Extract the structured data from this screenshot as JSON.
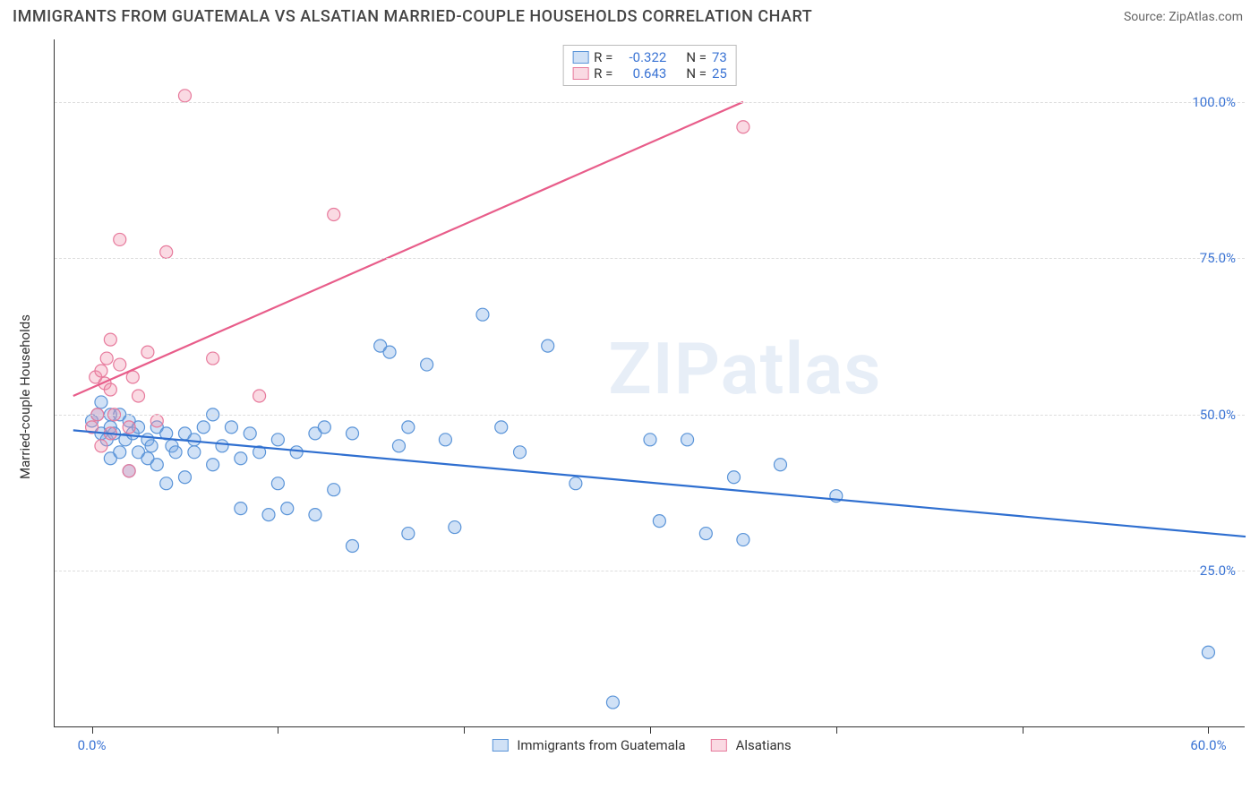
{
  "title": "IMMIGRANTS FROM GUATEMALA VS ALSATIAN MARRIED-COUPLE HOUSEHOLDS CORRELATION CHART",
  "source": "Source: ZipAtlas.com",
  "watermark": "ZIPatlas",
  "chart": {
    "type": "scatter",
    "ylabel": "Married-couple Households",
    "xlim": [
      -2,
      62
    ],
    "ylim": [
      0,
      110
    ],
    "xticks": [
      0,
      10,
      20,
      30,
      40,
      50,
      60
    ],
    "xtick_labels": {
      "0": "0.0%",
      "60": "60.0%"
    },
    "yticks": [
      25,
      50,
      75,
      100
    ],
    "ytick_labels": [
      "25.0%",
      "50.0%",
      "75.0%",
      "100.0%"
    ],
    "grid_color": "#dddddd",
    "axis_color": "#333333",
    "background_color": "#ffffff",
    "tick_label_color": "#3b74d4",
    "marker_radius": 7,
    "marker_stroke_width": 1.2,
    "line_width": 2.2,
    "series": [
      {
        "name": "Immigrants from Guatemala",
        "fill": "rgba(120,170,230,0.35)",
        "stroke": "#5a94d8",
        "line_color": "#2f6fd0",
        "R": "-0.322",
        "N": "73",
        "trend": {
          "x1": -1,
          "y1": 47.5,
          "x2": 62,
          "y2": 30.5
        },
        "points": [
          [
            0,
            49
          ],
          [
            0.3,
            50
          ],
          [
            0.5,
            47
          ],
          [
            0.5,
            52
          ],
          [
            0.8,
            46
          ],
          [
            1,
            50
          ],
          [
            1,
            43
          ],
          [
            1,
            48
          ],
          [
            1.2,
            47
          ],
          [
            1.5,
            44
          ],
          [
            1.5,
            50
          ],
          [
            1.8,
            46
          ],
          [
            2,
            49
          ],
          [
            2,
            41
          ],
          [
            2.2,
            47
          ],
          [
            2.5,
            44
          ],
          [
            2.5,
            48
          ],
          [
            3,
            43
          ],
          [
            3,
            46
          ],
          [
            3.2,
            45
          ],
          [
            3.5,
            42
          ],
          [
            3.5,
            48
          ],
          [
            4,
            47
          ],
          [
            4,
            39
          ],
          [
            4.3,
            45
          ],
          [
            4.5,
            44
          ],
          [
            5,
            47
          ],
          [
            5,
            40
          ],
          [
            5.5,
            46
          ],
          [
            5.5,
            44
          ],
          [
            6,
            48
          ],
          [
            6.5,
            42
          ],
          [
            6.5,
            50
          ],
          [
            7,
            45
          ],
          [
            7.5,
            48
          ],
          [
            8,
            43
          ],
          [
            8,
            35
          ],
          [
            8.5,
            47
          ],
          [
            9,
            44
          ],
          [
            9.5,
            34
          ],
          [
            10,
            46
          ],
          [
            10,
            39
          ],
          [
            10.5,
            35
          ],
          [
            11,
            44
          ],
          [
            12,
            47
          ],
          [
            12,
            34
          ],
          [
            12.5,
            48
          ],
          [
            13,
            38
          ],
          [
            14,
            29
          ],
          [
            14,
            47
          ],
          [
            15.5,
            61
          ],
          [
            16,
            60
          ],
          [
            16.5,
            45
          ],
          [
            17,
            48
          ],
          [
            17,
            31
          ],
          [
            18,
            58
          ],
          [
            19,
            46
          ],
          [
            19.5,
            32
          ],
          [
            21,
            66
          ],
          [
            22,
            48
          ],
          [
            23,
            44
          ],
          [
            24.5,
            61
          ],
          [
            26,
            39
          ],
          [
            28,
            4
          ],
          [
            30,
            46
          ],
          [
            30.5,
            33
          ],
          [
            32,
            46
          ],
          [
            33,
            31
          ],
          [
            34.5,
            40
          ],
          [
            35,
            30
          ],
          [
            37,
            42
          ],
          [
            40,
            37
          ],
          [
            60,
            12
          ]
        ]
      },
      {
        "name": "Alsatians",
        "fill": "rgba(240,150,175,0.35)",
        "stroke": "#e77a9c",
        "line_color": "#e85d8a",
        "R": "0.643",
        "N": "25",
        "trend": {
          "x1": -1,
          "y1": 53,
          "x2": 35,
          "y2": 100
        },
        "points": [
          [
            0,
            48
          ],
          [
            0.2,
            56
          ],
          [
            0.3,
            50
          ],
          [
            0.5,
            57
          ],
          [
            0.5,
            45
          ],
          [
            0.7,
            55
          ],
          [
            0.8,
            59
          ],
          [
            1,
            47
          ],
          [
            1,
            54
          ],
          [
            1,
            62
          ],
          [
            1.2,
            50
          ],
          [
            1.5,
            58
          ],
          [
            1.5,
            78
          ],
          [
            2,
            48
          ],
          [
            2,
            41
          ],
          [
            2.2,
            56
          ],
          [
            2.5,
            53
          ],
          [
            3,
            60
          ],
          [
            3.5,
            49
          ],
          [
            4,
            76
          ],
          [
            5,
            101
          ],
          [
            6.5,
            59
          ],
          [
            9,
            53
          ],
          [
            13,
            82
          ],
          [
            35,
            96
          ]
        ]
      }
    ]
  },
  "legend_top": {
    "rows": [
      {
        "swatch_fill": "rgba(120,170,230,0.35)",
        "swatch_stroke": "#5a94d8",
        "R_label": "R =",
        "R_val": "-0.322",
        "N_label": "N =",
        "N_val": "73"
      },
      {
        "swatch_fill": "rgba(240,150,175,0.35)",
        "swatch_stroke": "#e77a9c",
        "R_label": "R =",
        "R_val": " 0.643",
        "N_label": "N =",
        "N_val": "25"
      }
    ],
    "label_color": "#333333",
    "value_color": "#3b74d4"
  },
  "legend_bottom": {
    "items": [
      {
        "swatch_fill": "rgba(120,170,230,0.35)",
        "swatch_stroke": "#5a94d8",
        "label": "Immigrants from Guatemala"
      },
      {
        "swatch_fill": "rgba(240,150,175,0.35)",
        "swatch_stroke": "#e77a9c",
        "label": "Alsatians"
      }
    ]
  }
}
